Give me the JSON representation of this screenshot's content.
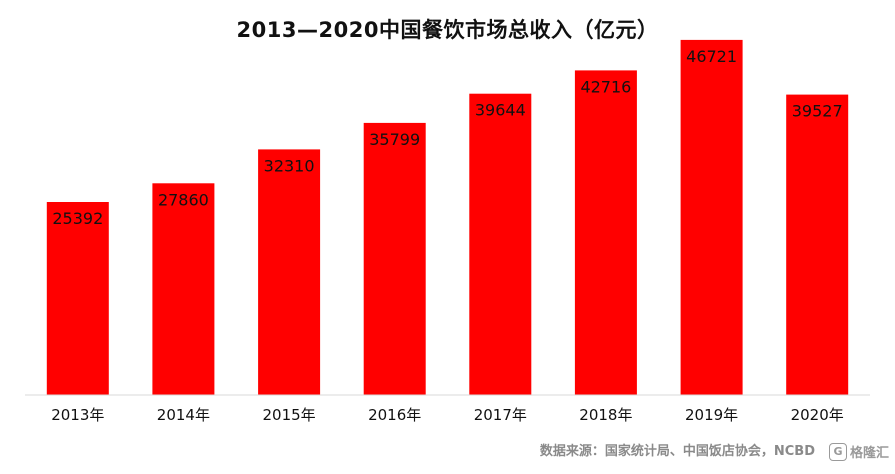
{
  "title": "2013—2020中国餐饮市场总收入（亿元）",
  "source": "数据来源：国家统计局、中国饭店协会，NCBD",
  "logo": {
    "mark": "G",
    "text": "格隆汇"
  },
  "colors": {
    "bar": "#ff0000",
    "axis": "#d9d9d9",
    "label": "#111111"
  },
  "chart_data": {
    "type": "bar",
    "title": "2013—2020中国餐饮市场总收入（亿元）",
    "categories": [
      "2013年",
      "2014年",
      "2015年",
      "2016年",
      "2017年",
      "2018年",
      "2019年",
      "2020年"
    ],
    "values": [
      25392,
      27860,
      32310,
      35799,
      39644,
      42716,
      46721,
      39527
    ],
    "xlabel": "",
    "ylabel": "",
    "ylim": [
      0,
      50000
    ],
    "grid": false,
    "legend": "none",
    "data_labels": "inside-top"
  }
}
